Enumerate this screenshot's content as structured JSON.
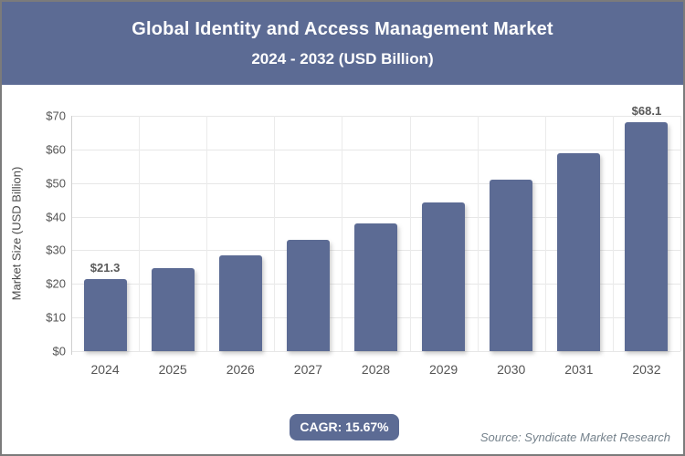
{
  "header": {
    "title_line1": "Global Identity and Access Management Market",
    "title_line2": "2024 - 2032 (USD Billion)"
  },
  "chart_data": {
    "type": "bar",
    "title": "Global Identity and Access Management Market 2024 - 2032 (USD Billion)",
    "categories": [
      "2024",
      "2025",
      "2026",
      "2027",
      "2028",
      "2029",
      "2030",
      "2031",
      "2032"
    ],
    "values": [
      21.3,
      24.6,
      28.5,
      33.0,
      38.1,
      44.1,
      51.0,
      59.0,
      68.1
    ],
    "point_labels": [
      "$21.3",
      "",
      "",
      "",
      "",
      "",
      "",
      "",
      "$68.1"
    ],
    "xlabel": "",
    "ylabel": "Market Size (USD Billion)",
    "ylim": [
      0,
      70
    ],
    "ytick_step": 10,
    "ytick_labels": [
      "$0",
      "$10",
      "$20",
      "$30",
      "$40",
      "$50",
      "$60",
      "$70"
    ],
    "grid": "horizontal and vertical light gray",
    "legend": "none",
    "bar_color": "#5c6b94"
  },
  "footer": {
    "cagr_label": "CAGR: 15.67%",
    "source": "Source: Syndicate Market Research"
  },
  "colors": {
    "accent": "#5c6b94",
    "grid": "#e7e7e7",
    "axis": "#cfcfcf",
    "tick_text": "#555555",
    "value_label_text": "#595959",
    "source_text": "#75828c",
    "frame_border": "#7b7b7b",
    "header_text": "#ffffff"
  }
}
